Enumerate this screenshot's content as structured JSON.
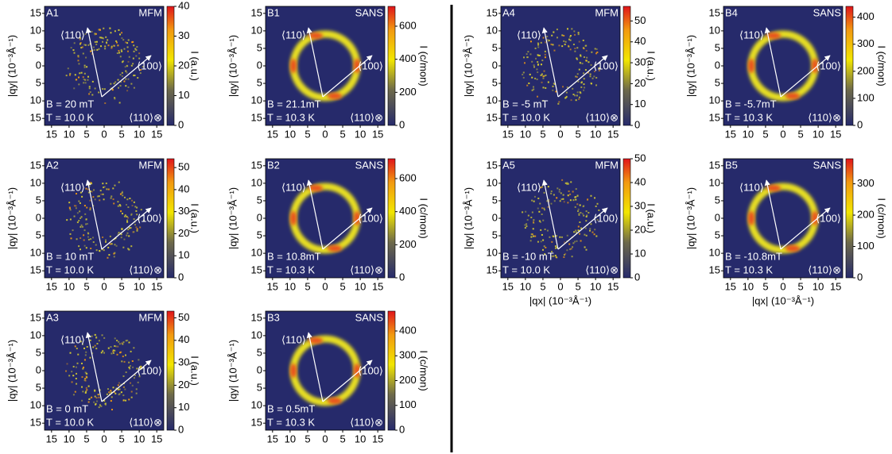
{
  "figure": {
    "x_label": "|qx| (10⁻³Å⁻¹)",
    "y_label": "|qy| (10⁻³Å⁻¹)",
    "axis_lim": [
      -17,
      17
    ],
    "axis_ticks": [
      {
        "value": -15,
        "label": "15"
      },
      {
        "value": -10,
        "label": "10"
      },
      {
        "value": -5,
        "label": "5"
      },
      0,
      5,
      10,
      15
    ],
    "direction_up": "⟨110⟩",
    "direction_right": "⟨100⟩",
    "direction_out": "⟨110⟩⊗",
    "panels": [
      {
        "id": "A1",
        "method": "MFM",
        "field": "B = 20 mT",
        "temperature": "T = 10.0 K",
        "colorbar_label": "I (a.u.)",
        "colorbar_lim": [
          0,
          40
        ],
        "colorbar_ticks": [
          0,
          10,
          20,
          30,
          40
        ]
      },
      {
        "id": "A2",
        "method": "MFM",
        "field": "B = 10 mT",
        "temperature": "T = 10.0 K",
        "colorbar_label": "I (a.u.)",
        "colorbar_lim": [
          0,
          54
        ],
        "colorbar_ticks": [
          0,
          10,
          20,
          30,
          40,
          50
        ]
      },
      {
        "id": "A3",
        "method": "MFM",
        "field": "B = 0 mT",
        "temperature": "T = 10.0 K",
        "colorbar_label": "I (a.u.)",
        "colorbar_lim": [
          0,
          53
        ],
        "colorbar_ticks": [
          0,
          10,
          20,
          30,
          40,
          50
        ]
      },
      {
        "id": "B1",
        "method": "SANS",
        "field": "B = 21.1mT",
        "temperature": "T = 10.3 K",
        "colorbar_label": "I (c/mon)",
        "colorbar_lim": [
          0,
          720
        ],
        "colorbar_ticks": [
          0,
          200,
          400,
          600
        ]
      },
      {
        "id": "B2",
        "method": "SANS",
        "field": "B = 10.8mT",
        "temperature": "T = 10.3 K",
        "colorbar_label": "I (c/mon)",
        "colorbar_lim": [
          0,
          720
        ],
        "colorbar_ticks": [
          0,
          200,
          400,
          600
        ]
      },
      {
        "id": "B3",
        "method": "SANS",
        "field": "B = 0.5mT",
        "temperature": "T = 10.3 K",
        "colorbar_label": "I (c/mon)",
        "colorbar_lim": [
          0,
          480
        ],
        "colorbar_ticks": [
          0,
          100,
          200,
          300,
          400
        ]
      },
      {
        "id": "A4",
        "method": "MFM",
        "field": "B = -5 mT",
        "temperature": "T = 10.0 K",
        "colorbar_label": "I (a.u.)",
        "colorbar_lim": [
          0,
          57
        ],
        "colorbar_ticks": [
          0,
          10,
          20,
          30,
          40,
          50
        ]
      },
      {
        "id": "A5",
        "method": "MFM",
        "field": "B = -10 mT",
        "temperature": "T = 10.0 K",
        "colorbar_label": "I (a.u.)",
        "colorbar_lim": [
          0,
          50
        ],
        "colorbar_ticks": [
          0,
          10,
          20,
          30,
          40,
          50
        ]
      },
      {
        "id": "B4",
        "method": "SANS",
        "field": "B = -5.7mT",
        "temperature": "T = 10.3 K",
        "colorbar_label": "I (c/mon)",
        "colorbar_lim": [
          0,
          440
        ],
        "colorbar_ticks": [
          0,
          100,
          200,
          300,
          400
        ]
      },
      {
        "id": "B5",
        "method": "SANS",
        "field": "B = -10.8mT",
        "temperature": "T = 10.3 K",
        "colorbar_label": "I (c/mon)",
        "colorbar_lim": [
          0,
          380
        ],
        "colorbar_ticks": [
          0,
          100,
          200,
          300
        ]
      }
    ]
  }
}
